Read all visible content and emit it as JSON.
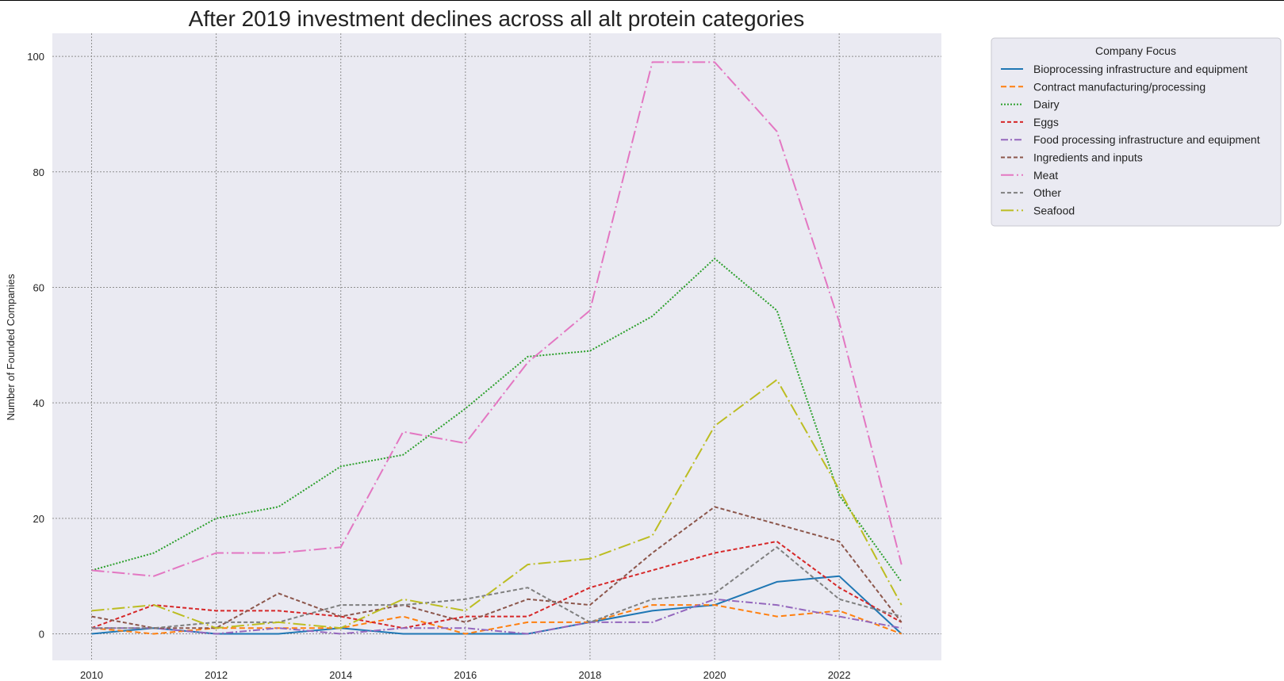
{
  "chart_data": {
    "type": "line",
    "title": "After 2019 investment declines across all alt protein categories",
    "xlabel": "",
    "ylabel": "Number of Founded Companies",
    "x": [
      2010,
      2011,
      2012,
      2013,
      2014,
      2015,
      2016,
      2017,
      2018,
      2019,
      2020,
      2021,
      2022,
      2023
    ],
    "xlim": [
      2009.37,
      2023.64
    ],
    "ylim": [
      -4.6,
      104
    ],
    "xticks": [
      2010,
      2012,
      2014,
      2016,
      2018,
      2020,
      2022
    ],
    "yticks": [
      0,
      20,
      40,
      60,
      80,
      100
    ],
    "grid": true,
    "legend": {
      "title": "Company Focus",
      "placement": "outside-top-right"
    },
    "series": [
      {
        "name": "Bioprocessing infrastructure and equipment",
        "color": "#1f77b4",
        "dash": "solid",
        "values": [
          0,
          1,
          0,
          0,
          1,
          0,
          0,
          0,
          2,
          4,
          5,
          9,
          10,
          0
        ]
      },
      {
        "name": "Contract manufacturing/processing",
        "color": "#ff7f0e",
        "dash": "dashed",
        "values": [
          1,
          0,
          1,
          1,
          1,
          3,
          0,
          2,
          2,
          5,
          5,
          3,
          4,
          0
        ]
      },
      {
        "name": "Dairy",
        "color": "#2ca02c",
        "dash": "dotted",
        "values": [
          11,
          14,
          20,
          22,
          29,
          31,
          39,
          48,
          49,
          55,
          65,
          56,
          24,
          9
        ]
      },
      {
        "name": "Eggs",
        "color": "#d62728",
        "dash": "dashed-fine",
        "values": [
          1,
          5,
          4,
          4,
          3,
          1,
          3,
          3,
          8,
          11,
          14,
          16,
          8,
          2
        ]
      },
      {
        "name": "Food processing infrastructure and equipment",
        "color": "#9467bd",
        "dash": "dashdot",
        "values": [
          1,
          1,
          0,
          1,
          0,
          1,
          1,
          0,
          2,
          2,
          6,
          5,
          3,
          1
        ]
      },
      {
        "name": "Ingredients and inputs",
        "color": "#8c564b",
        "dash": "dashed-fine",
        "values": [
          3,
          1,
          1,
          7,
          3,
          5,
          2,
          6,
          5,
          14,
          22,
          19,
          16,
          2
        ]
      },
      {
        "name": "Meat",
        "color": "#e377c2",
        "dash": "long-dashdot",
        "values": [
          11,
          10,
          14,
          14,
          15,
          35,
          33,
          47,
          56,
          99,
          99,
          87,
          54,
          12
        ]
      },
      {
        "name": "Other",
        "color": "#7f7f7f",
        "dash": "dashed-fine",
        "values": [
          1,
          1,
          2,
          2,
          5,
          5,
          6,
          8,
          2,
          6,
          7,
          15,
          6,
          3
        ]
      },
      {
        "name": "Seafood",
        "color": "#bcbd22",
        "dash": "long-dashdot",
        "values": [
          4,
          5,
          1,
          2,
          1,
          6,
          4,
          12,
          13,
          17,
          36,
          44,
          25,
          5
        ]
      }
    ]
  }
}
